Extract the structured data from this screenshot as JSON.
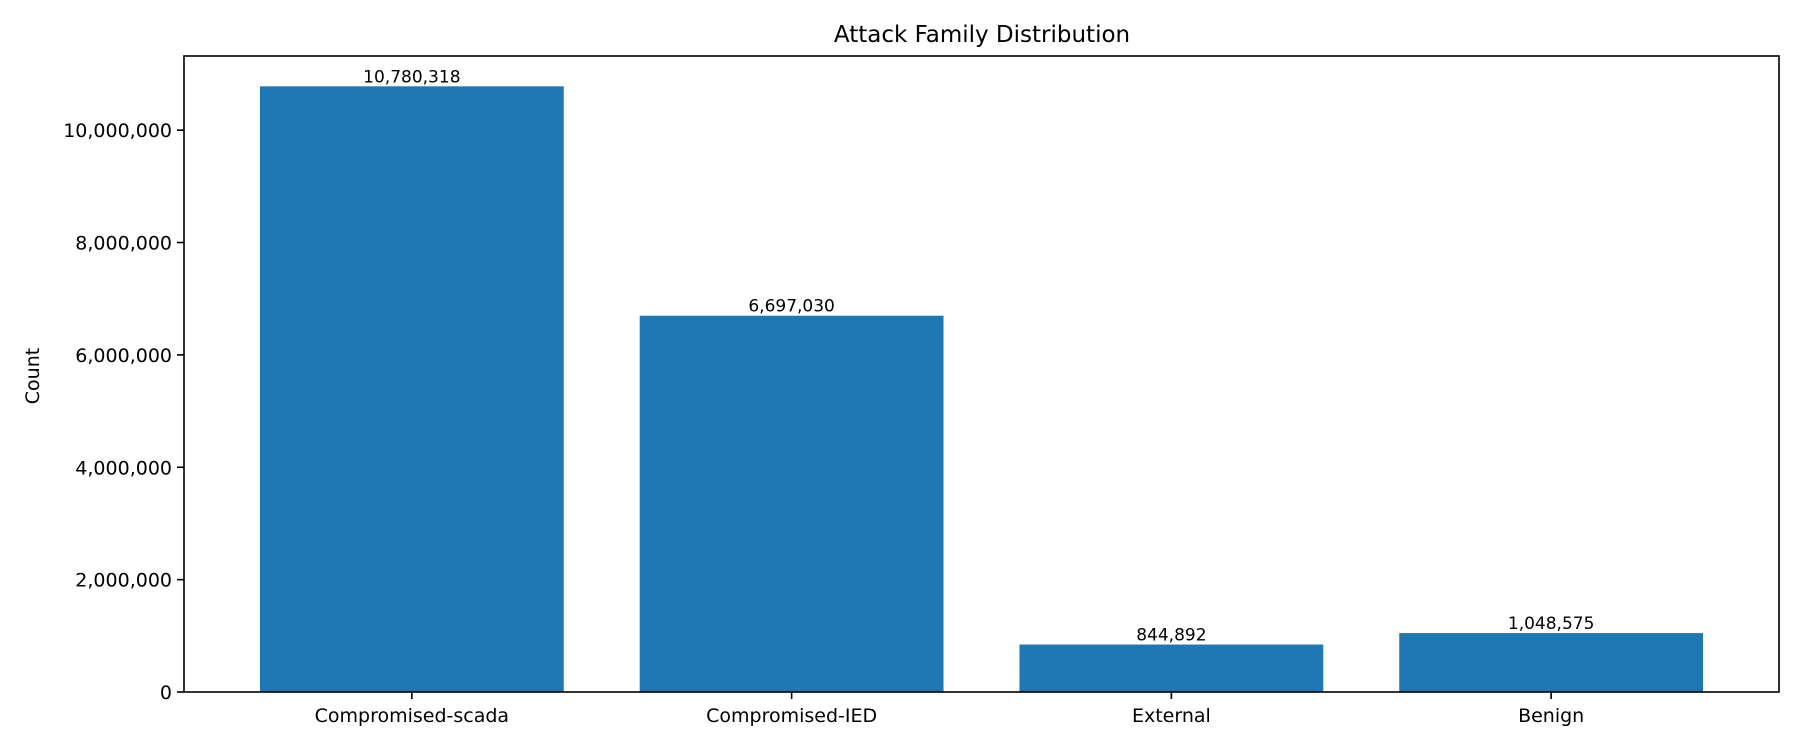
{
  "chart_data": {
    "type": "bar",
    "title": "Attack Family Distribution",
    "xlabel": "",
    "ylabel": "Count",
    "categories": [
      "Compromised-scada",
      "Compromised-IED",
      "External",
      "Benign"
    ],
    "values": [
      10780318,
      6697030,
      844892,
      1048575
    ],
    "data_labels": [
      "10,780,318",
      "6,697,030",
      "844,892",
      "1,048,575"
    ],
    "yticks": [
      0,
      2000000,
      4000000,
      6000000,
      8000000,
      10000000
    ],
    "ytick_labels": [
      "0",
      "2,000,000",
      "4,000,000",
      "6,000,000",
      "8,000,000",
      "10,000,000"
    ],
    "ylim": [
      0,
      11320000
    ],
    "grid": false,
    "legend": "none",
    "bar_color": "#1f77b4"
  }
}
